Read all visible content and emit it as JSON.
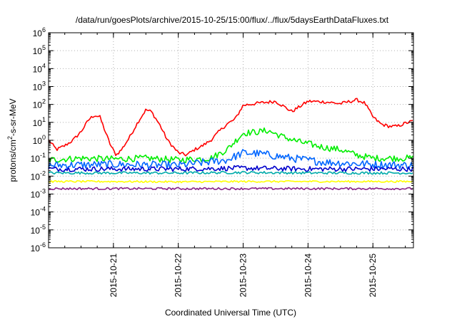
{
  "chart_data": {
    "type": "line",
    "title": "/data/run/goesPlots/archive/2015-10-25/15:00/flux/../flux/5daysEarthDataFluxes.txt",
    "xlabel": "Coordinated Universal Time (UTC)",
    "ylabel": "protons/cm²-s-sr-MeV",
    "ylabel_parts": {
      "pre": "protons/cm",
      "sup": "2",
      "post": "-s-sr-MeV"
    },
    "yscale": "log",
    "ylim": [
      1e-06,
      1000000.0
    ],
    "xlim": [
      "2015-10-20T00:00",
      "2015-10-25T15:00"
    ],
    "grid": true,
    "legend": "none",
    "x_ticks": [
      "2015-10-21",
      "2015-10-22",
      "2015-10-23",
      "2015-10-24",
      "2015-10-25"
    ],
    "y_ticks": [
      {
        "base": "10",
        "exp": "-6"
      },
      {
        "base": "10",
        "exp": "-5"
      },
      {
        "base": "10",
        "exp": "-4"
      },
      {
        "base": "10",
        "exp": "-3"
      },
      {
        "base": "10",
        "exp": "-2"
      },
      {
        "base": "10",
        "exp": "-1"
      },
      {
        "base": "10",
        "exp": "0"
      },
      {
        "base": "10",
        "exp": "1"
      },
      {
        "base": "10",
        "exp": "2"
      },
      {
        "base": "10",
        "exp": "3"
      },
      {
        "base": "10",
        "exp": "4"
      },
      {
        "base": "10",
        "exp": "5"
      },
      {
        "base": "10",
        "exp": "6"
      }
    ],
    "series": [
      {
        "color": "#ff0000",
        "values": [
          [
            "2015-10-20T00:00",
            1.0
          ],
          [
            "2015-10-20T03:00",
            0.3
          ],
          [
            "2015-10-20T06:00",
            0.5
          ],
          [
            "2015-10-20T09:00",
            1.0
          ],
          [
            "2015-10-20T12:00",
            3
          ],
          [
            "2015-10-20T15:00",
            15
          ],
          [
            "2015-10-20T17:00",
            25
          ],
          [
            "2015-10-20T19:00",
            20
          ],
          [
            "2015-10-20T21:00",
            3
          ],
          [
            "2015-10-20T23:00",
            0.5
          ],
          [
            "2015-10-21T01:00",
            0.15
          ],
          [
            "2015-10-21T03:00",
            0.3
          ],
          [
            "2015-10-21T06:00",
            1.5
          ],
          [
            "2015-10-21T09:00",
            10
          ],
          [
            "2015-10-21T12:00",
            50
          ],
          [
            "2015-10-21T14:00",
            40
          ],
          [
            "2015-10-21T17:00",
            8
          ],
          [
            "2015-10-21T20:00",
            1
          ],
          [
            "2015-10-22T00:00",
            0.2
          ],
          [
            "2015-10-22T03:00",
            0.15
          ],
          [
            "2015-10-22T06:00",
            0.3
          ],
          [
            "2015-10-22T09:00",
            0.5
          ],
          [
            "2015-10-22T12:00",
            1
          ],
          [
            "2015-10-22T15:00",
            3
          ],
          [
            "2015-10-22T18:00",
            8
          ],
          [
            "2015-10-22T21:00",
            15
          ],
          [
            "2015-10-23T00:00",
            90
          ],
          [
            "2015-10-23T06:00",
            120
          ],
          [
            "2015-10-23T12:00",
            150
          ],
          [
            "2015-10-23T18:00",
            40
          ],
          [
            "2015-10-24T00:00",
            150
          ],
          [
            "2015-10-24T06:00",
            140
          ],
          [
            "2015-10-24T12:00",
            110
          ],
          [
            "2015-10-24T18:00",
            180
          ],
          [
            "2015-10-24T21:00",
            120
          ],
          [
            "2015-10-25T00:00",
            20
          ],
          [
            "2015-10-25T03:00",
            8
          ],
          [
            "2015-10-25T06:00",
            6
          ],
          [
            "2015-10-25T09:00",
            6
          ],
          [
            "2015-10-25T12:00",
            9
          ],
          [
            "2015-10-25T15:00",
            12
          ]
        ]
      },
      {
        "color": "#00ee00",
        "values": [
          [
            "2015-10-20T00:00",
            0.08
          ],
          [
            "2015-10-20T12:00",
            0.1
          ],
          [
            "2015-10-21T00:00",
            0.09
          ],
          [
            "2015-10-21T12:00",
            0.1
          ],
          [
            "2015-10-22T00:00",
            0.08
          ],
          [
            "2015-10-22T12:00",
            0.1
          ],
          [
            "2015-10-22T18:00",
            0.3
          ],
          [
            "2015-10-23T00:00",
            2.5
          ],
          [
            "2015-10-23T06:00",
            3
          ],
          [
            "2015-10-23T09:00",
            3.5
          ],
          [
            "2015-10-23T15:00",
            1.5
          ],
          [
            "2015-10-23T21:00",
            0.8
          ],
          [
            "2015-10-24T06:00",
            0.4
          ],
          [
            "2015-10-24T12:00",
            0.3
          ],
          [
            "2015-10-24T18:00",
            0.15
          ],
          [
            "2015-10-25T00:00",
            0.1
          ],
          [
            "2015-10-25T15:00",
            0.1
          ]
        ]
      },
      {
        "color": "#0066ff",
        "values": [
          [
            "2015-10-20T00:00",
            0.04
          ],
          [
            "2015-10-21T00:00",
            0.045
          ],
          [
            "2015-10-22T00:00",
            0.04
          ],
          [
            "2015-10-22T18:00",
            0.08
          ],
          [
            "2015-10-23T00:00",
            0.2
          ],
          [
            "2015-10-23T06:00",
            0.18
          ],
          [
            "2015-10-23T18:00",
            0.1
          ],
          [
            "2015-10-24T06:00",
            0.06
          ],
          [
            "2015-10-25T00:00",
            0.045
          ],
          [
            "2015-10-25T15:00",
            0.04
          ]
        ]
      },
      {
        "color": "#0000cc",
        "values": [
          [
            "2015-10-20T00:00",
            0.025
          ],
          [
            "2015-10-21T00:00",
            0.025
          ],
          [
            "2015-10-22T00:00",
            0.025
          ],
          [
            "2015-10-23T00:00",
            0.028
          ],
          [
            "2015-10-24T00:00",
            0.025
          ],
          [
            "2015-10-25T00:00",
            0.025
          ],
          [
            "2015-10-25T15:00",
            0.025
          ]
        ]
      },
      {
        "color": "#00aaaa",
        "values": [
          [
            "2015-10-20T00:00",
            0.015
          ],
          [
            "2015-10-21T00:00",
            0.015
          ],
          [
            "2015-10-22T00:00",
            0.015
          ],
          [
            "2015-10-23T00:00",
            0.016
          ],
          [
            "2015-10-24T00:00",
            0.015
          ],
          [
            "2015-10-25T00:00",
            0.015
          ],
          [
            "2015-10-25T15:00",
            0.015
          ]
        ]
      },
      {
        "color": "#ffff00",
        "values": [
          [
            "2015-10-20T00:00",
            0.005
          ],
          [
            "2015-10-21T00:00",
            0.005
          ],
          [
            "2015-10-22T00:00",
            0.0048
          ],
          [
            "2015-10-23T00:00",
            0.005
          ],
          [
            "2015-10-24T00:00",
            0.005
          ],
          [
            "2015-10-25T00:00",
            0.005
          ],
          [
            "2015-10-25T15:00",
            0.005
          ]
        ]
      },
      {
        "color": "#882288",
        "values": [
          [
            "2015-10-20T00:00",
            0.002
          ],
          [
            "2015-10-21T00:00",
            0.002
          ],
          [
            "2015-10-22T00:00",
            0.002
          ],
          [
            "2015-10-23T00:00",
            0.002
          ],
          [
            "2015-10-24T00:00",
            0.002
          ],
          [
            "2015-10-25T00:00",
            0.002
          ],
          [
            "2015-10-25T15:00",
            0.002
          ]
        ]
      }
    ]
  }
}
